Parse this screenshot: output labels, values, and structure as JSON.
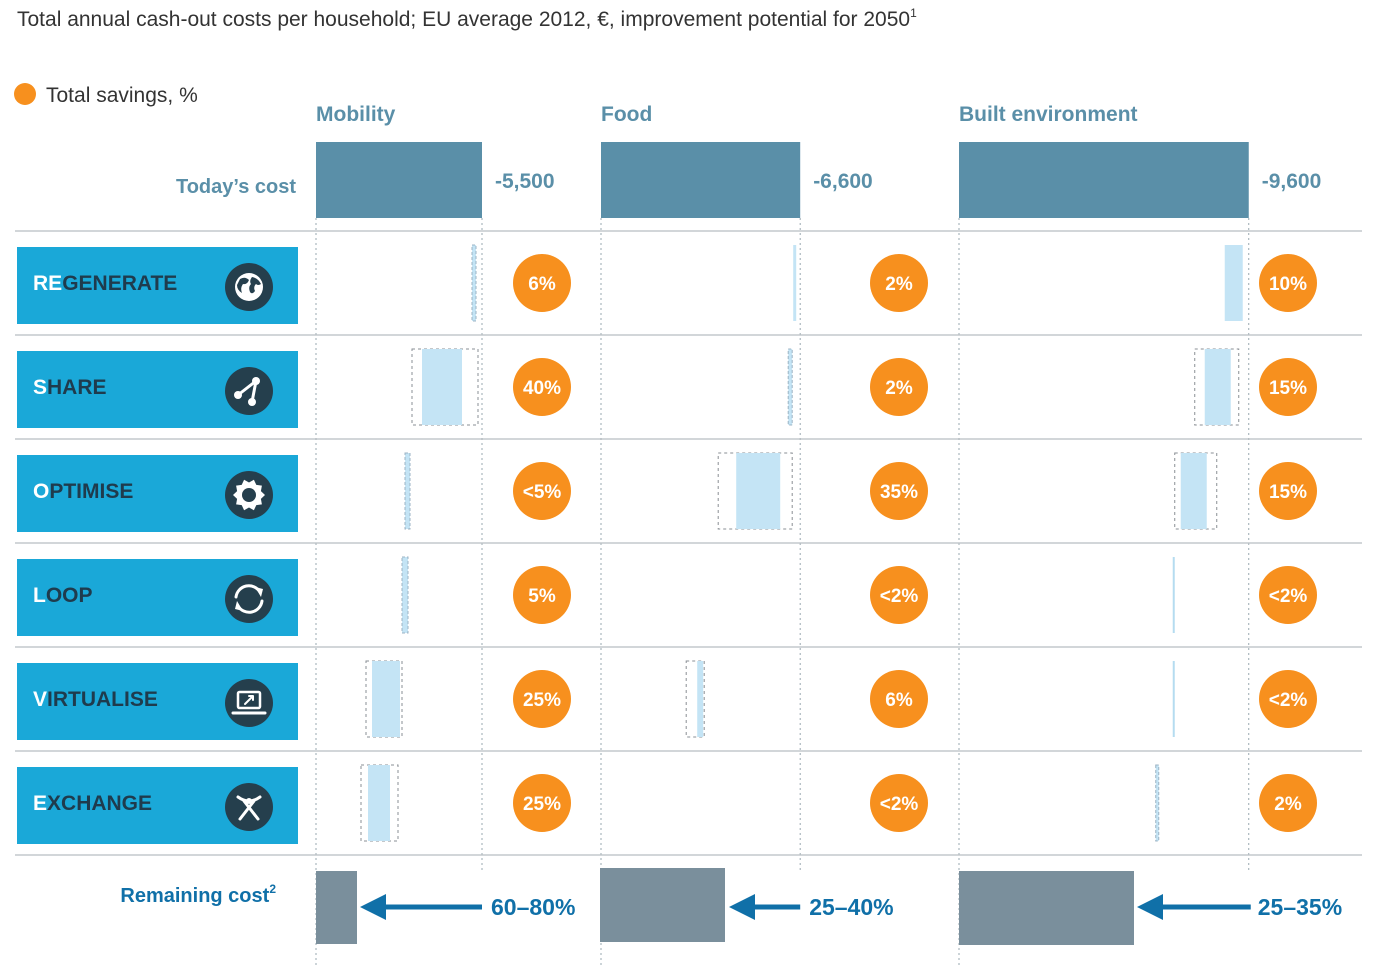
{
  "chart_data": {
    "type": "bar",
    "title": "Total annual cash-out costs per household; EU average 2012, €, improvement potential for 2050",
    "title_sup": "1",
    "legend": {
      "label": "Total savings, %",
      "color": "#f7901e"
    },
    "categories": [
      "Mobility",
      "Food",
      "Built environment"
    ],
    "todays_cost": {
      "label": "Today’s cost",
      "values": [
        -5500,
        -6600,
        -9600
      ],
      "value_labels": [
        "-5,500",
        "-6,600",
        "-9,600"
      ]
    },
    "levers": [
      {
        "name": "REGENERATE",
        "first": "RE",
        "rest": "GENERATE",
        "icon": "globe-icon",
        "savings": [
          "6%",
          "2%",
          "10%"
        ],
        "savings_values": [
          6,
          2,
          10
        ]
      },
      {
        "name": "SHARE",
        "first": "S",
        "rest": "HARE",
        "icon": "share-icon",
        "savings": [
          "40%",
          "2%",
          "15%"
        ],
        "savings_values": [
          40,
          2,
          15
        ]
      },
      {
        "name": "OPTIMISE",
        "first": "O",
        "rest": "PTIMISE",
        "icon": "gear-icon",
        "savings": [
          "<5%",
          "35%",
          "15%"
        ],
        "savings_values": [
          4,
          35,
          15
        ]
      },
      {
        "name": "LOOP",
        "first": "L",
        "rest": "OOP",
        "icon": "loop-icon",
        "savings": [
          "5%",
          "<2%",
          "<2%"
        ],
        "savings_values": [
          5,
          1,
          1
        ]
      },
      {
        "name": "VIRTUALISE",
        "first": "V",
        "rest": "IRTUALISE",
        "icon": "laptop-icon",
        "savings": [
          "25%",
          "6%",
          "<2%"
        ],
        "savings_values": [
          25,
          6,
          1
        ]
      },
      {
        "name": "EXCHANGE",
        "first": "E",
        "rest": "XCHANGE",
        "icon": "exchange-icon",
        "savings": [
          "25%",
          "<2%",
          "2%"
        ],
        "savings_values": [
          25,
          1,
          2
        ]
      }
    ],
    "remaining_cost": {
      "label": "Remaining cost",
      "label_sup": "2",
      "ranges": [
        "60–80%",
        "25–40%",
        "25–35%"
      ]
    },
    "colors": {
      "cost_bar": "#5a8fa8",
      "remaining_bar": "#7a8f9c",
      "saving_bar": "#c4e4f5",
      "lever_box": "#1aa8d8",
      "badge": "#f7901e",
      "arrow": "#1070a8",
      "icon_circle": "#253f4d"
    }
  }
}
